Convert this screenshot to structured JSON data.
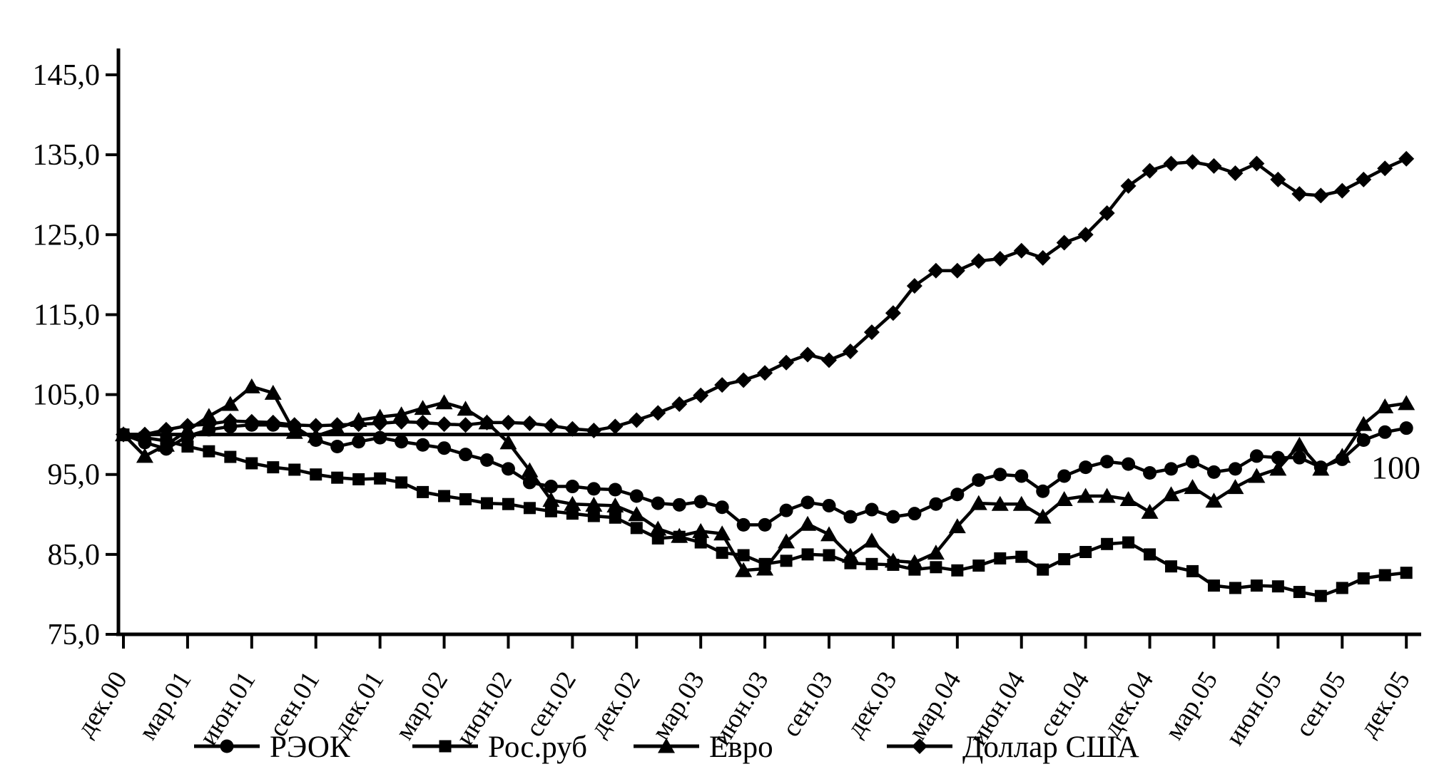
{
  "chart_data": {
    "type": "line",
    "title": "",
    "background": "#ffffff",
    "line_color": "#000000",
    "grid": false,
    "legend_position": "bottom",
    "y_axis": {
      "min": 75,
      "max": 145,
      "tick_step": 10,
      "tick_labels": [
        "145,0",
        "135,0",
        "125,0",
        "115,0",
        "105,0",
        "95,0",
        "85,0",
        "75,0"
      ]
    },
    "x_axis": {
      "tick_labels": [
        "дек.00",
        "мар.01",
        "июн.01",
        "сен.01",
        "дек.01",
        "мар.02",
        "июн.02",
        "сен.02",
        "дек.02",
        "мар.03",
        "июн.03",
        "сен.03",
        "дек.03",
        "мар.04",
        "июн.04",
        "сен.04",
        "дек.04",
        "мар.05",
        "июн.05",
        "сен.05",
        "дек.05"
      ],
      "months_per_tick": 3,
      "points_per_month": 1
    },
    "reference_line": {
      "value": 100,
      "label": "100"
    },
    "series": [
      {
        "name": "РЭОК",
        "marker": "circle",
        "values": [
          100.0,
          99.0,
          98.2,
          99.8,
          100.6,
          101.0,
          101.2,
          101.2,
          101.0,
          99.3,
          98.5,
          99.1,
          99.6,
          99.1,
          98.7,
          98.3,
          97.5,
          96.8,
          95.7,
          94.0,
          93.5,
          93.5,
          93.2,
          93.1,
          92.3,
          91.4,
          91.2,
          91.6,
          90.9,
          88.7,
          88.7,
          90.5,
          91.5,
          91.1,
          89.7,
          90.6,
          89.7,
          90.1,
          91.3,
          92.5,
          94.3,
          95.0,
          94.8,
          92.9,
          94.8,
          95.9,
          96.6,
          96.3,
          95.2,
          95.7,
          96.6,
          95.3,
          95.7,
          97.3,
          97.1,
          97.1,
          95.9,
          96.9,
          99.3,
          100.3,
          100.8
        ]
      },
      {
        "name": "Рос.руб",
        "marker": "square",
        "values": [
          100.0,
          99.6,
          99.2,
          98.5,
          97.9,
          97.2,
          96.4,
          95.9,
          95.6,
          95.0,
          94.6,
          94.4,
          94.5,
          94.0,
          92.8,
          92.3,
          91.9,
          91.4,
          91.3,
          90.8,
          90.4,
          90.1,
          89.8,
          89.6,
          88.3,
          87.0,
          87.2,
          86.5,
          85.2,
          84.9,
          83.8,
          84.2,
          85.0,
          84.9,
          83.9,
          83.8,
          83.7,
          83.1,
          83.4,
          83.0,
          83.6,
          84.5,
          84.7,
          83.1,
          84.4,
          85.3,
          86.3,
          86.5,
          85.0,
          83.5,
          82.9,
          81.1,
          80.8,
          81.1,
          81.0,
          80.3,
          79.8,
          80.8,
          82.0,
          82.4,
          82.7
        ]
      },
      {
        "name": "Евро",
        "marker": "triangle",
        "values": [
          100.0,
          97.3,
          98.7,
          100.5,
          102.3,
          103.8,
          106.0,
          105.2,
          100.3,
          99.8,
          100.7,
          101.8,
          102.2,
          102.5,
          103.3,
          104.0,
          103.2,
          101.5,
          99.0,
          95.5,
          91.8,
          91.3,
          91.2,
          91.1,
          90.0,
          88.2,
          87.3,
          87.9,
          87.6,
          83.0,
          83.2,
          86.6,
          88.8,
          87.5,
          84.8,
          86.7,
          84.2,
          84.0,
          85.2,
          88.5,
          91.4,
          91.3,
          91.3,
          89.7,
          91.9,
          92.3,
          92.3,
          91.9,
          90.3,
          92.5,
          93.4,
          91.7,
          93.4,
          94.8,
          95.7,
          98.7,
          95.7,
          97.3,
          101.3,
          103.5,
          103.9
        ]
      },
      {
        "name": "Доллар США",
        "marker": "diamond",
        "values": [
          100.0,
          100.0,
          100.6,
          101.1,
          101.3,
          101.7,
          101.6,
          101.5,
          101.2,
          101.1,
          101.2,
          101.3,
          101.4,
          101.6,
          101.5,
          101.3,
          101.2,
          101.5,
          101.5,
          101.4,
          101.1,
          100.7,
          100.5,
          101.0,
          101.8,
          102.7,
          103.8,
          104.9,
          106.2,
          106.8,
          107.7,
          109.0,
          110.0,
          109.3,
          110.4,
          112.8,
          115.2,
          118.6,
          120.5,
          120.5,
          121.7,
          122.0,
          123.0,
          122.1,
          124.0,
          125.0,
          127.7,
          131.1,
          133.0,
          133.9,
          134.1,
          133.6,
          132.7,
          133.9,
          131.9,
          130.1,
          129.9,
          130.5,
          131.9,
          133.3,
          134.5
        ]
      }
    ]
  }
}
